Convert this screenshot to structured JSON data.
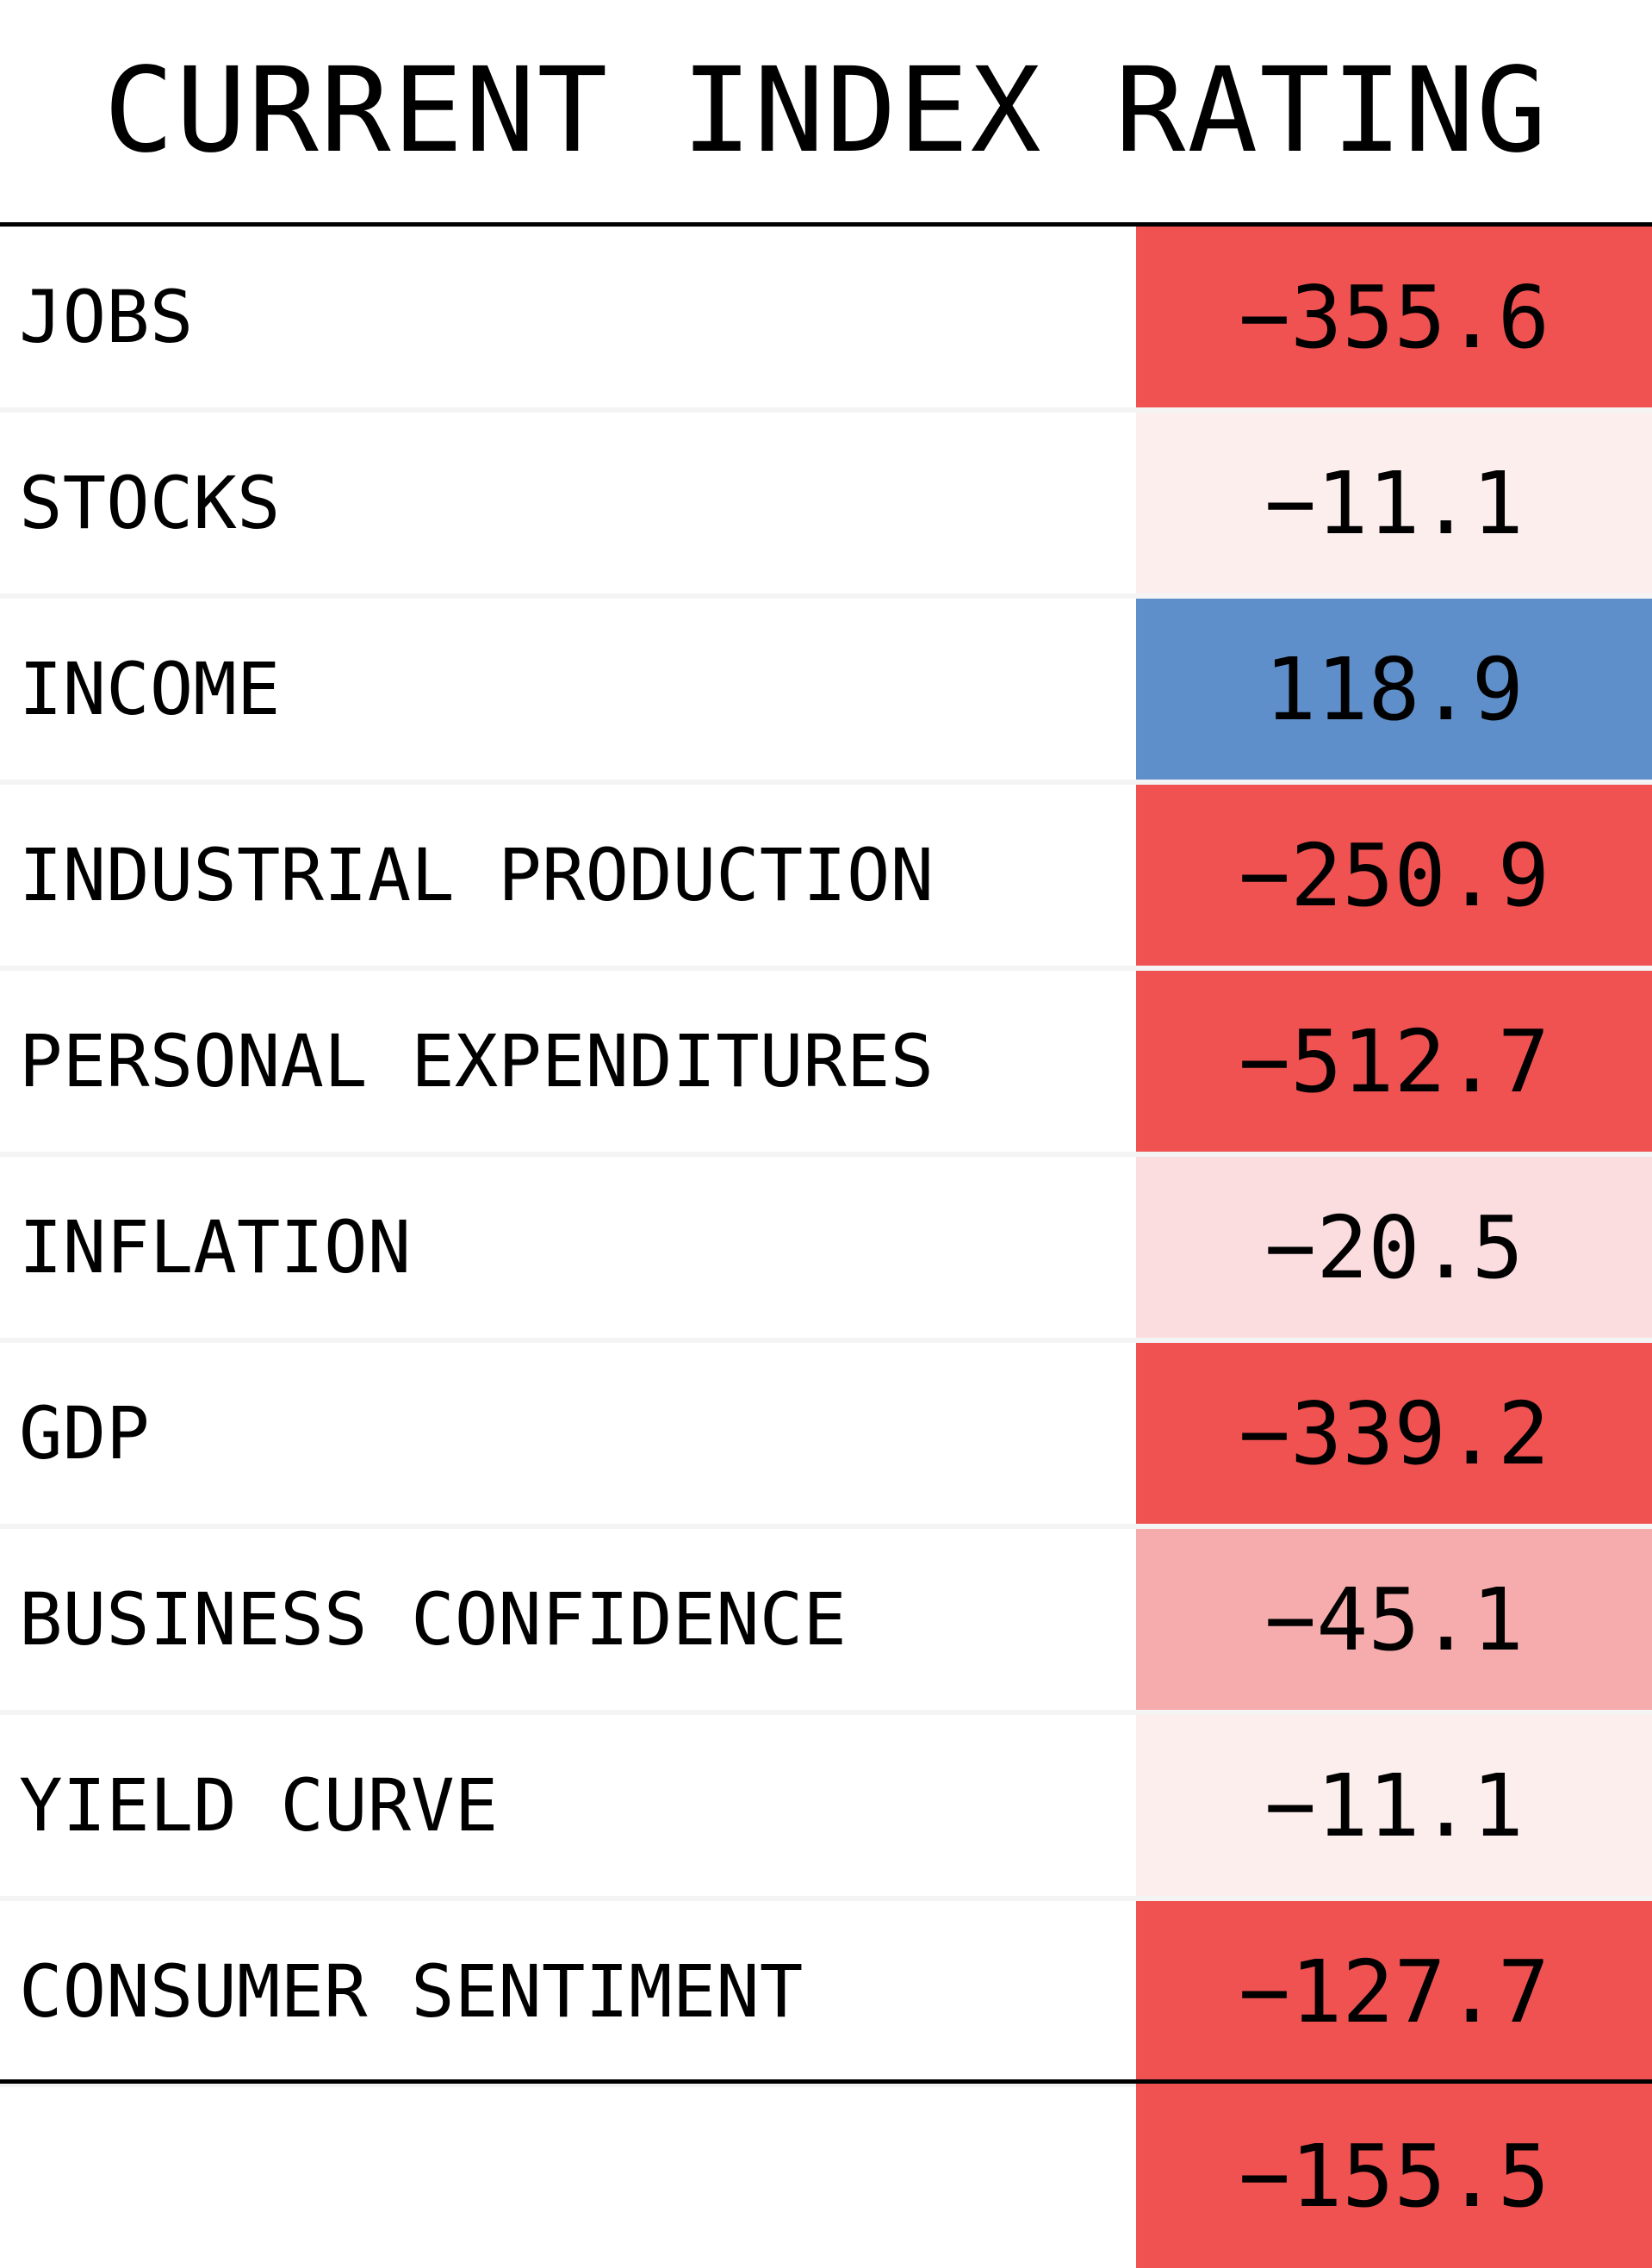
{
  "title": "CURRENT INDEX RATING",
  "chart_data": {
    "type": "table",
    "title": "CURRENT INDEX RATING",
    "rows": [
      {
        "label": "JOBS",
        "value": -355.6,
        "display": "−355.6",
        "color": "#f05252"
      },
      {
        "label": "STOCKS",
        "value": -11.1,
        "display": "−11.1",
        "color": "#fdeeee"
      },
      {
        "label": "INCOME",
        "value": 118.9,
        "display": "118.9",
        "color": "#5f8fca"
      },
      {
        "label": "INDUSTRIAL PRODUCTION",
        "value": -250.9,
        "display": "−250.9",
        "color": "#f05252"
      },
      {
        "label": "PERSONAL EXPENDITURES",
        "value": -512.7,
        "display": "−512.7",
        "color": "#f05252"
      },
      {
        "label": "INFLATION",
        "value": -20.5,
        "display": "−20.5",
        "color": "#fbdde0"
      },
      {
        "label": "GDP",
        "value": -339.2,
        "display": "−339.2",
        "color": "#f05252"
      },
      {
        "label": "BUSINESS CONFIDENCE",
        "value": -45.1,
        "display": "−45.1",
        "color": "#f6acad"
      },
      {
        "label": "YIELD CURVE",
        "value": -11.1,
        "display": "−11.1",
        "color": "#fdeeee"
      },
      {
        "label": "CONSUMER SENTIMENT",
        "value": -127.7,
        "display": "−127.7",
        "color": "#f05252"
      }
    ],
    "total": {
      "value": -155.5,
      "display": "−155.5",
      "color": "#f05252"
    }
  }
}
